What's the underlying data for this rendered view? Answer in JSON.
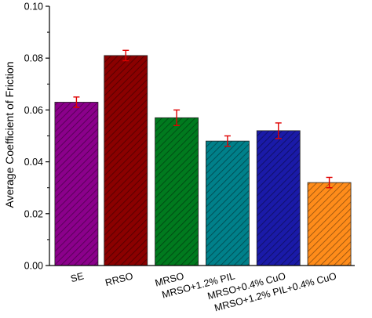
{
  "chart_data": {
    "type": "bar",
    "title": "",
    "xlabel": "",
    "ylabel": "Average Coefficient of Friction",
    "categories": [
      "SE",
      "RRSO",
      "MRSO",
      "MRSO+1.2% PIL",
      "MRSO+0.4% CuO",
      "MRSO+1.2% PIL+0.4% CuO"
    ],
    "values": [
      0.063,
      0.081,
      0.057,
      0.048,
      0.052,
      0.032
    ],
    "errors": [
      0.002,
      0.002,
      0.003,
      0.002,
      0.003,
      0.002
    ],
    "colors": [
      "#8b008b",
      "#8b0000",
      "#007a1e",
      "#00808a",
      "#1a1aa8",
      "#ff8c1a"
    ],
    "error_bar_color": "#e00000",
    "ylim": [
      0,
      0.1
    ],
    "yticks": [
      "0.00",
      "0.02",
      "0.04",
      "0.06",
      "0.08",
      "0.10"
    ],
    "grid": false,
    "hatch": "diagonal"
  }
}
